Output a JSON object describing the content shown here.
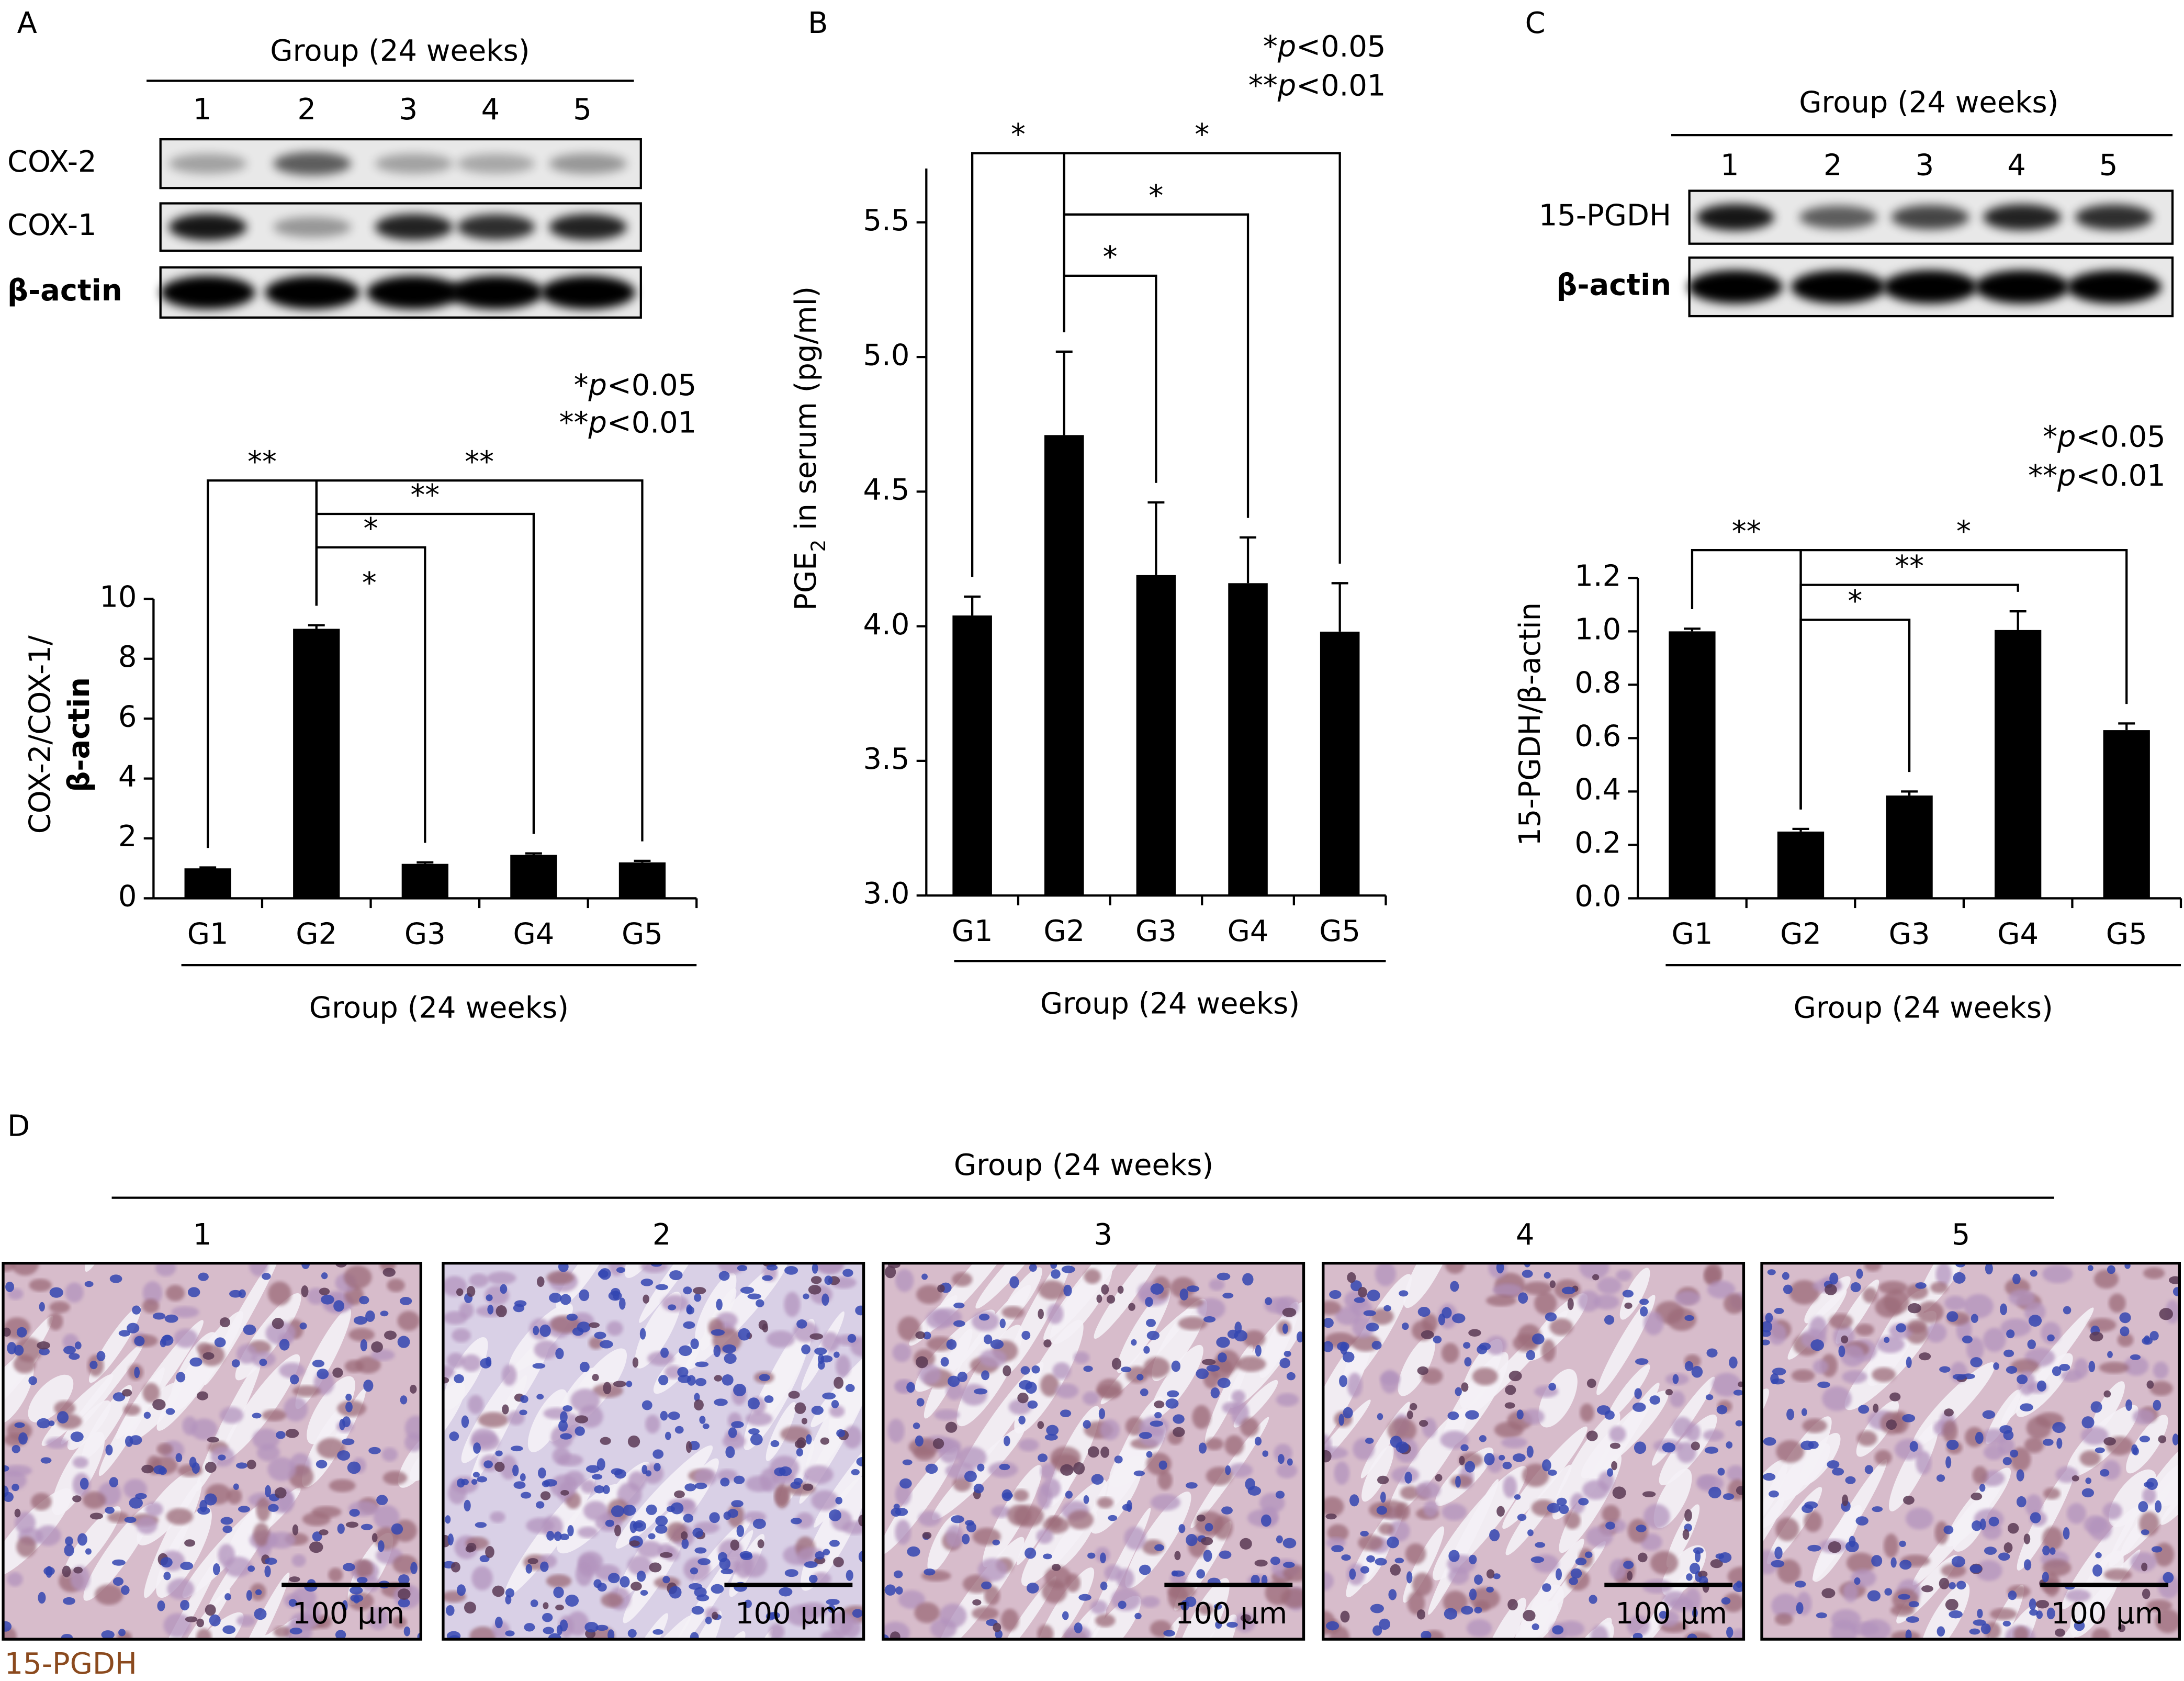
{
  "chart_data": [
    {
      "panel": "A",
      "type": "bar",
      "ylabel": [
        "COX-2/COX-1/",
        "β-actin"
      ],
      "xlabel": "Group (24 weeks)",
      "categories": [
        "G1",
        "G2",
        "G3",
        "G4",
        "G5"
      ],
      "values": [
        1.0,
        9.0,
        1.15,
        1.45,
        1.2
      ],
      "errors": [
        0.03,
        0.12,
        0.05,
        0.05,
        0.05
      ],
      "color": "#000000",
      "ylim": [
        0,
        10
      ],
      "yticks": [
        0,
        2,
        4,
        6,
        8,
        10
      ],
      "notes": [
        "*p<0.05",
        "**p<0.01"
      ],
      "comparisons": [
        {
          "pair": [
            "G1",
            "G2"
          ],
          "label": "**"
        },
        {
          "pair": [
            "G2",
            "G5"
          ],
          "label": "**"
        },
        {
          "pair": [
            "G2",
            "G4"
          ],
          "label": "**"
        },
        {
          "pair": [
            "G2",
            "G3"
          ],
          "label": "*"
        }
      ],
      "annotations": [
        "*"
      ]
    },
    {
      "panel": "B",
      "type": "bar",
      "ylabel": [
        "PGE",
        "2",
        " in serum (pg/ml)"
      ],
      "xlabel": "Group (24 weeks)",
      "categories": [
        "G1",
        "G2",
        "G3",
        "G4",
        "G5"
      ],
      "values": [
        4.04,
        4.71,
        4.19,
        4.16,
        3.98
      ],
      "errors": [
        0.07,
        0.31,
        0.27,
        0.17,
        0.18
      ],
      "color": "#000000",
      "ylim": [
        3.0,
        5.7
      ],
      "yticks": [
        {
          "value": 3.0,
          "label": "3.0"
        },
        {
          "value": 3.5,
          "label": "3.5"
        },
        {
          "value": 4.0,
          "label": "4.0"
        },
        {
          "value": 4.5,
          "label": "4.5"
        },
        {
          "value": 5.0,
          "label": "5.0"
        },
        {
          "value": 5.5,
          "label": "5.5"
        }
      ],
      "notes": [
        "*p<0.05",
        "**p<0.01"
      ],
      "comparisons": [
        {
          "pair": [
            "G1",
            "G2"
          ],
          "label": "*"
        },
        {
          "pair": [
            "G2",
            "G5"
          ],
          "label": "*"
        },
        {
          "pair": [
            "G2",
            "G4"
          ],
          "label": "*"
        },
        {
          "pair": [
            "G2",
            "G3"
          ],
          "label": "*"
        }
      ]
    },
    {
      "panel": "C",
      "type": "bar",
      "ylabel": [
        "15-PGDH/β-actin"
      ],
      "xlabel": "Group (24 weeks)",
      "categories": [
        "G1",
        "G2",
        "G3",
        "G4",
        "G5"
      ],
      "values": [
        1.0,
        0.25,
        0.385,
        1.005,
        0.63
      ],
      "errors": [
        0.01,
        0.01,
        0.015,
        0.07,
        0.025
      ],
      "color": "#000000",
      "ylim": [
        0,
        1.2
      ],
      "yticks": [
        {
          "value": 0,
          "label": "0.0"
        },
        {
          "value": 0.2,
          "label": "0.2"
        },
        {
          "value": 0.4,
          "label": "0.4"
        },
        {
          "value": 0.6,
          "label": "0.6"
        },
        {
          "value": 0.8,
          "label": "0.8"
        },
        {
          "value": 1.0,
          "label": "1.0"
        },
        {
          "value": 1.2,
          "label": "1.2"
        }
      ],
      "notes": [
        "*p<0.05",
        "**p<0.01"
      ],
      "comparisons": [
        {
          "pair": [
            "G1",
            "G2"
          ],
          "label": "**"
        },
        {
          "pair": [
            "G2",
            "G5"
          ],
          "label": "*"
        },
        {
          "pair": [
            "G2",
            "G4"
          ],
          "label": "**"
        },
        {
          "pair": [
            "G2",
            "G3"
          ],
          "label": "*"
        }
      ]
    }
  ],
  "blots": [
    {
      "title": "Group (24 weeks)",
      "lanes": [
        "1",
        "2",
        "3",
        "4",
        "5"
      ],
      "rows": [
        "COX-2",
        "COX-1",
        "β-actin"
      ]
    },
    {
      "title": "Group (24 weeks)",
      "lanes": [
        "1",
        "2",
        "3",
        "4",
        "5"
      ],
      "rows": [
        "15-PGDH",
        "β-actin"
      ]
    }
  ],
  "histology": {
    "panel": "D",
    "title": "Group (24 weeks)",
    "groups": [
      "1",
      "2",
      "3",
      "4",
      "5"
    ],
    "scale_bar": "100 μm",
    "stain": "15-PGDH"
  }
}
